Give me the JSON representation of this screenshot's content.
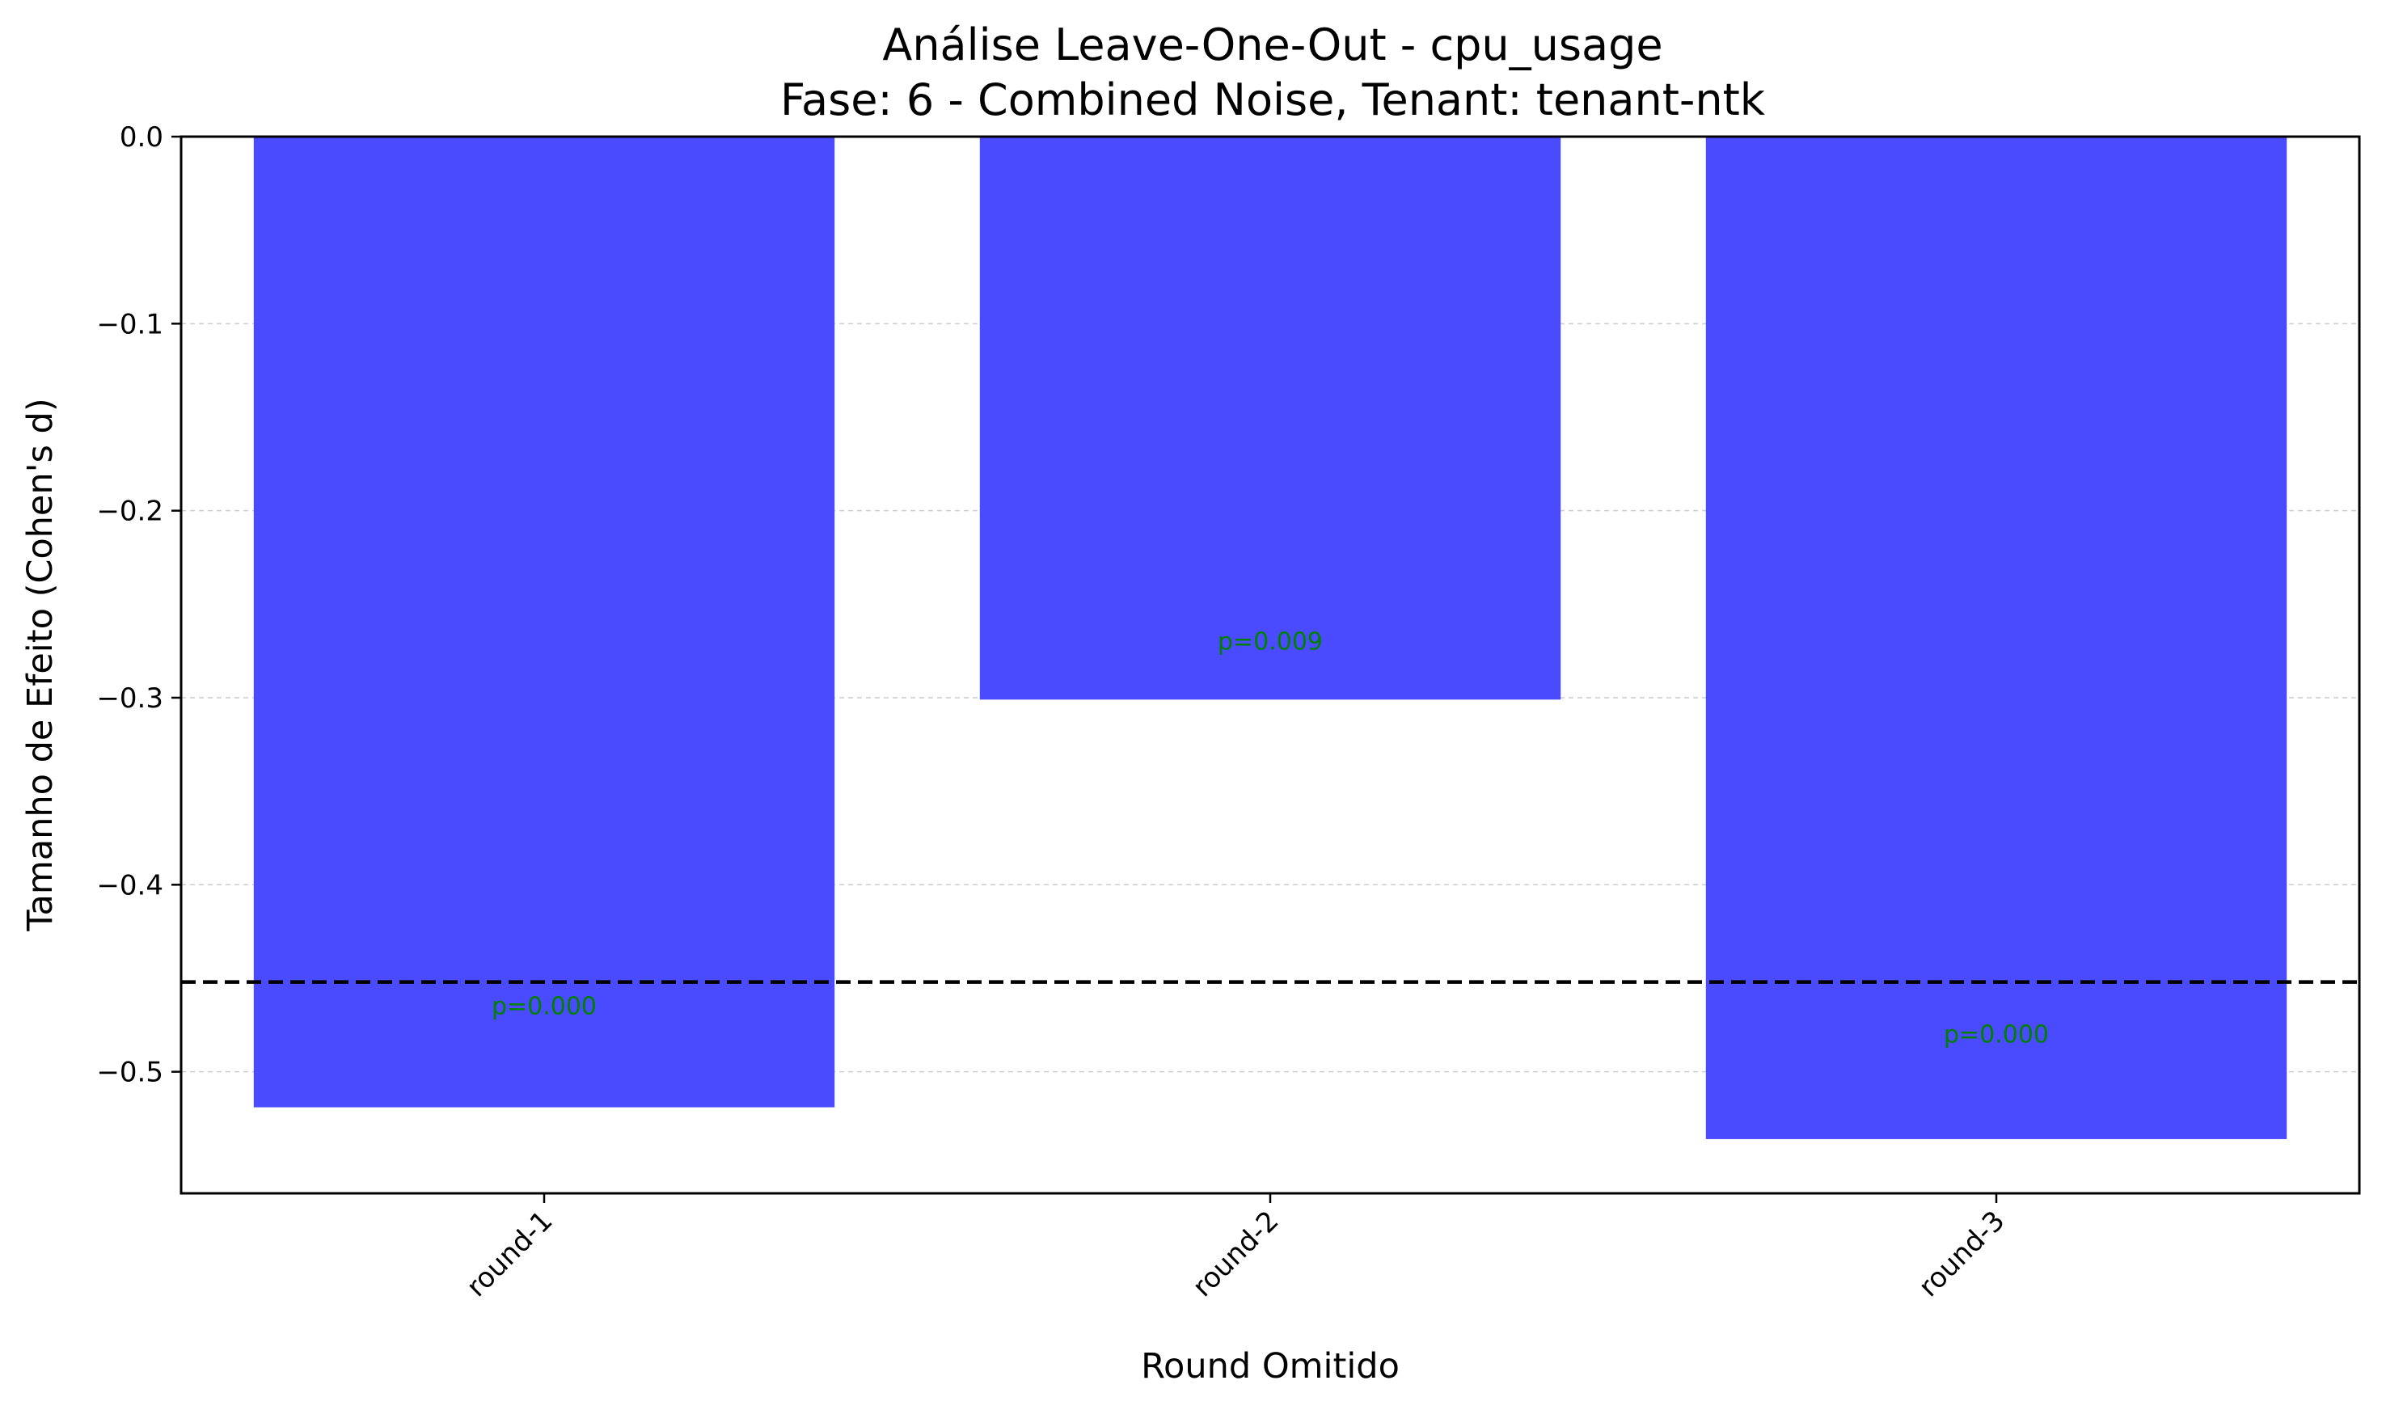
{
  "chart_data": {
    "type": "bar",
    "title_line1": "Análise Leave-One-Out - cpu_usage",
    "title_line2": "Fase: 6 - Combined Noise, Tenant: tenant-ntk",
    "xlabel": "Round Omitido",
    "ylabel": "Tamanho de Efeito (Cohen's d)",
    "categories": [
      "round-1",
      "round-2",
      "round-3"
    ],
    "values": [
      -0.519,
      -0.301,
      -0.536
    ],
    "annotations": [
      "p=0.000",
      "p=0.009",
      "p=0.000"
    ],
    "annotation_y": [
      -0.465,
      -0.27,
      -0.48
    ],
    "reference_line": -0.452,
    "ylim": [
      -0.565,
      0.0
    ],
    "yticks": [
      0.0,
      -0.1,
      -0.2,
      -0.3,
      -0.4,
      -0.5
    ],
    "ytick_labels": [
      "0.0",
      "−0.1",
      "−0.2",
      "−0.3",
      "−0.4",
      "−0.5"
    ],
    "grid": "y-dashed",
    "bar_color": "#4a4aff",
    "annotation_color": "#008000",
    "reference_color": "#000000"
  }
}
